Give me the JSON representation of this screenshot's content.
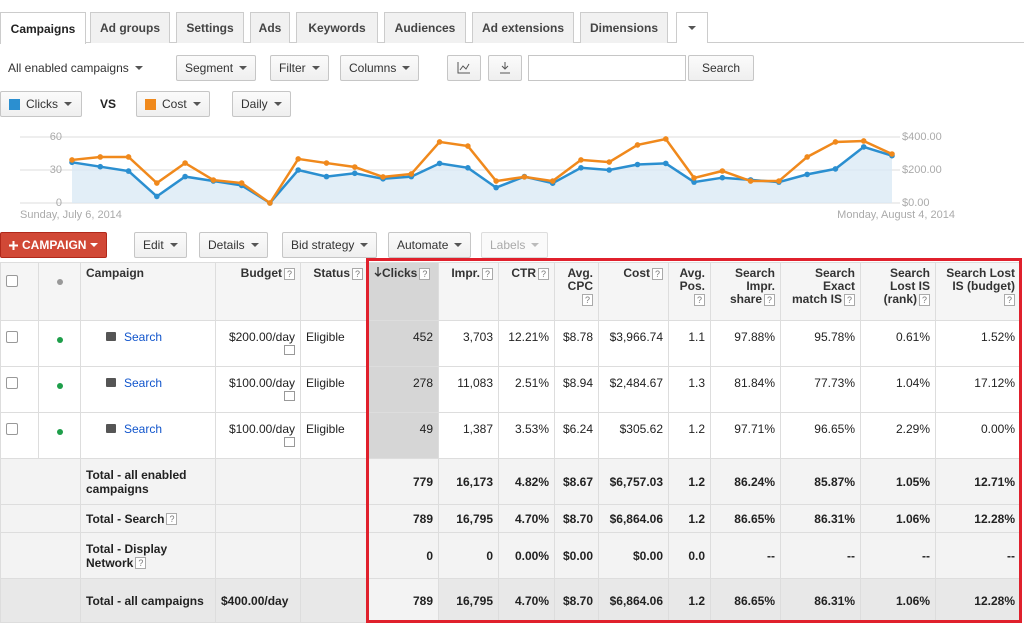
{
  "tabs": [
    "Campaigns",
    "Ad groups",
    "Settings",
    "Ads",
    "Keywords",
    "Audiences",
    "Ad extensions",
    "Dimensions"
  ],
  "toolbar": {
    "view": "All enabled campaigns",
    "segment": "Segment",
    "filter": "Filter",
    "columns": "Columns",
    "search_button": "Search"
  },
  "chart_controls": {
    "metric1": "Clicks",
    "vs": "VS",
    "metric2": "Cost",
    "interval": "Daily"
  },
  "chart_data": {
    "type": "line",
    "categories": [
      "Sunday, July 6, 2014",
      null,
      null,
      null,
      null,
      null,
      null,
      null,
      null,
      null,
      null,
      null,
      null,
      null,
      null,
      null,
      null,
      null,
      null,
      null,
      null,
      null,
      null,
      null,
      null,
      null,
      null,
      null,
      null,
      "Monday, August 4, 2014"
    ],
    "series": [
      {
        "name": "Clicks",
        "color": "#2b8fd0",
        "area": true,
        "values": [
          37,
          33,
          29,
          6,
          24,
          20,
          16,
          0,
          30,
          24,
          27,
          22,
          24,
          36,
          32,
          14,
          24,
          18,
          32,
          30,
          35,
          36,
          19,
          23,
          21,
          19,
          26,
          31,
          51,
          43
        ]
      },
      {
        "name": "Cost",
        "color": "#f0891c",
        "axis": "y2",
        "values": [
          261,
          279,
          279,
          121,
          242,
          139,
          121,
          0,
          267,
          242,
          218,
          158,
          176,
          370,
          345,
          133,
          158,
          133,
          261,
          248,
          352,
          388,
          152,
          194,
          133,
          133,
          279,
          370,
          376,
          297
        ]
      }
    ],
    "ylim": [
      0,
      60
    ],
    "yticks": [
      0,
      30,
      60
    ],
    "y2lim": [
      0,
      400
    ],
    "y2ticks": [
      {
        "value": 0,
        "label": "$0.00"
      },
      {
        "value": 200,
        "label": "$200.00"
      },
      {
        "value": 400,
        "label": "$400.00"
      }
    ],
    "grid": true
  },
  "actions": {
    "campaign": "CAMPAIGN",
    "edit": "Edit",
    "details": "Details",
    "bid_strategy": "Bid strategy",
    "automate": "Automate",
    "labels": "Labels"
  },
  "help_icon": "?",
  "table": {
    "columns": [
      "Campaign",
      "Budget",
      "Status",
      "Clicks",
      "Impr.",
      "CTR",
      "Avg. CPC",
      "Cost",
      "Avg. Pos.",
      "Search Impr. share",
      "Search Exact match IS",
      "Search Lost IS (rank)",
      "Search Lost IS (budget)"
    ],
    "rows": [
      {
        "campaign": "Search",
        "budget": "$200.00/day",
        "status": "Eligible",
        "values": [
          "452",
          "3,703",
          "12.21%",
          "$8.78",
          "$3,966.74",
          "1.1",
          "97.88%",
          "95.78%",
          "0.61%",
          "1.52%"
        ]
      },
      {
        "campaign": "Search",
        "budget": "$100.00/day",
        "status": "Eligible",
        "values": [
          "278",
          "11,083",
          "2.51%",
          "$8.94",
          "$2,484.67",
          "1.3",
          "81.84%",
          "77.73%",
          "1.04%",
          "17.12%"
        ]
      },
      {
        "campaign": "Search",
        "budget": "$100.00/day",
        "status": "Eligible",
        "values": [
          "49",
          "1,387",
          "3.53%",
          "$6.24",
          "$305.62",
          "1.2",
          "97.71%",
          "96.65%",
          "2.29%",
          "0.00%"
        ]
      }
    ],
    "totals": [
      {
        "label": "Total - all enabled campaigns",
        "values": [
          "779",
          "16,173",
          "4.82%",
          "$8.67",
          "$6,757.03",
          "1.2",
          "86.24%",
          "85.87%",
          "1.05%",
          "12.71%"
        ]
      },
      {
        "label": "Total - Search",
        "help": true,
        "values": [
          "789",
          "16,795",
          "4.70%",
          "$8.70",
          "$6,864.06",
          "1.2",
          "86.65%",
          "86.31%",
          "1.06%",
          "12.28%"
        ]
      },
      {
        "label": "Total - Display Network",
        "help": true,
        "values": [
          "0",
          "0",
          "0.00%",
          "$0.00",
          "$0.00",
          "0.0",
          "--",
          "--",
          "--",
          "--"
        ]
      },
      {
        "label": "Total - all campaigns",
        "budget": "$400.00/day",
        "values": [
          "789",
          "16,795",
          "4.70%",
          "$8.70",
          "$6,864.06",
          "1.2",
          "86.65%",
          "86.31%",
          "1.06%",
          "12.28%"
        ]
      }
    ]
  }
}
